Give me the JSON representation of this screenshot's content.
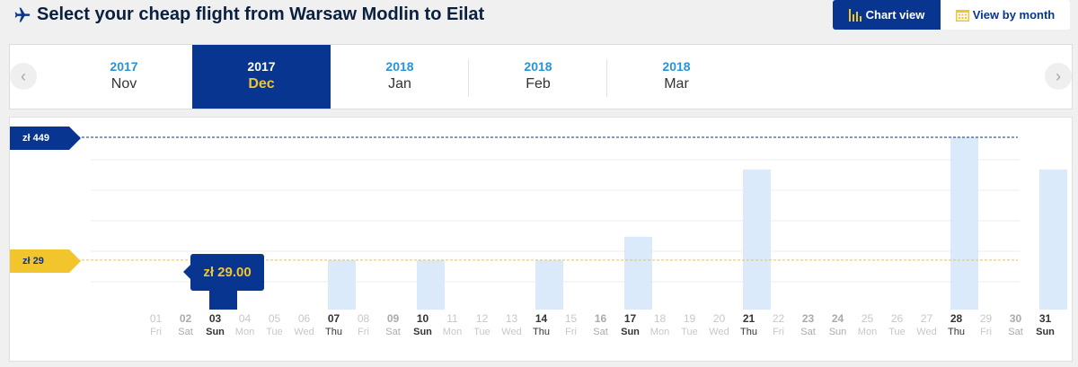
{
  "header": {
    "title": "Select your cheap flight from Warsaw Modlin to Eilat"
  },
  "view_toggle": {
    "chart_label": "Chart view",
    "month_label": "View by month",
    "active": "chart"
  },
  "months": [
    {
      "year": "2017",
      "month": "Nov",
      "active": false
    },
    {
      "year": "2017",
      "month": "Dec",
      "active": true
    },
    {
      "year": "2018",
      "month": "Jan",
      "active": false
    },
    {
      "year": "2018",
      "month": "Feb",
      "active": false
    },
    {
      "year": "2018",
      "month": "Mar",
      "active": false
    }
  ],
  "chart": {
    "max_label": "zł 449",
    "min_label": "zł 29",
    "selected_price": "zł 29.00",
    "selected_day": "03"
  },
  "chart_data": {
    "type": "bar",
    "categories": [
      "01",
      "02",
      "03",
      "04",
      "05",
      "06",
      "07",
      "08",
      "09",
      "10",
      "11",
      "12",
      "13",
      "14",
      "15",
      "16",
      "17",
      "18",
      "19",
      "20",
      "21",
      "22",
      "23",
      "24",
      "25",
      "26",
      "27",
      "28",
      "29",
      "30",
      "31"
    ],
    "weekdays": [
      "Fri",
      "Sat",
      "Sun",
      "Mon",
      "Tue",
      "Wed",
      "Thu",
      "Fri",
      "Sat",
      "Sun",
      "Mon",
      "Tue",
      "Wed",
      "Thu",
      "Fri",
      "Sat",
      "Sun",
      "Mon",
      "Tue",
      "Wed",
      "Thu",
      "Fri",
      "Sat",
      "Sun",
      "Mon",
      "Tue",
      "Wed",
      "Thu",
      "Fri",
      "Sat",
      "Sun"
    ],
    "values": [
      null,
      null,
      29,
      null,
      null,
      null,
      29,
      null,
      null,
      29,
      null,
      null,
      null,
      29,
      null,
      null,
      109,
      null,
      null,
      null,
      339,
      null,
      null,
      null,
      null,
      null,
      null,
      449,
      null,
      null,
      339
    ],
    "selected_index": 2,
    "ylim": [
      -140,
      449
    ],
    "colors": {
      "selected": "#073590",
      "bar": "#dbeafb",
      "max_line": "#073590",
      "min_line": "#f2c52c"
    }
  }
}
